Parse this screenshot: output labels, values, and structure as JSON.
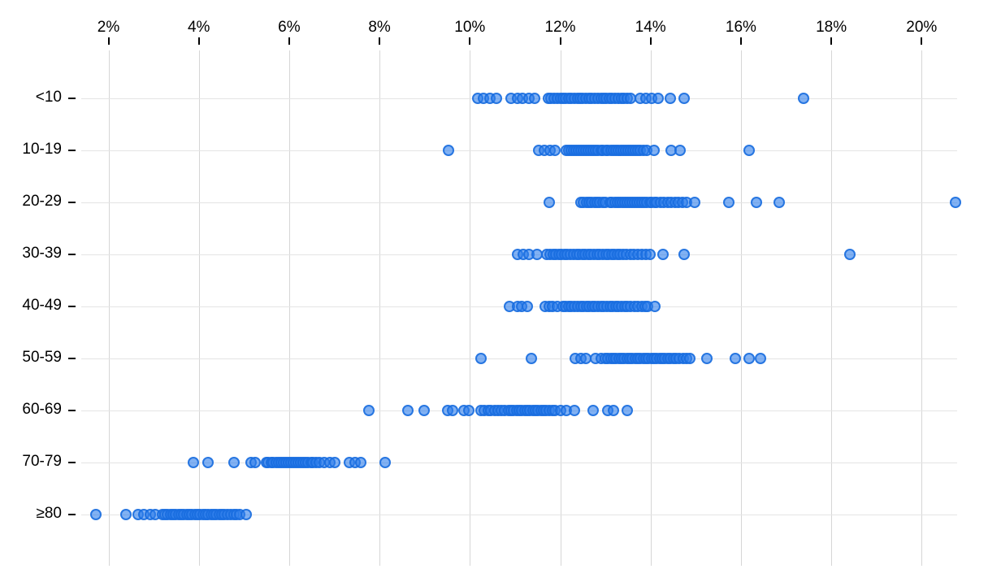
{
  "chart_data": {
    "type": "scatter",
    "variant": "strip-dot-plot",
    "title": "",
    "xlabel": "",
    "ylabel": "",
    "x_axis_position": "top",
    "x_tick_values": [
      2,
      4,
      6,
      8,
      10,
      12,
      14,
      16,
      18,
      20
    ],
    "x_tick_suffix": "%",
    "xlim": [
      1.4,
      20.9
    ],
    "grid": true,
    "legend": "none",
    "marker": {
      "shape": "circle",
      "fill": "rgba(45,125,235,0.6)",
      "stroke": "rgba(23,108,222,0.85)",
      "accent_hex": "#2d7df0"
    },
    "categories": [
      "<10",
      "10-19",
      "20-29",
      "30-39",
      "40-49",
      "50-59",
      "60-69",
      "70-79",
      "≥80"
    ],
    "series": [
      {
        "name": "<10",
        "values": [
          10.18,
          10.3,
          10.45,
          10.58,
          10.92,
          11.05,
          11.17,
          11.3,
          11.44,
          11.74,
          11.8,
          11.87,
          11.93,
          12.0,
          12.06,
          12.12,
          12.19,
          12.25,
          12.31,
          12.38,
          12.44,
          12.5,
          12.57,
          12.63,
          12.7,
          12.76,
          12.83,
          12.9,
          12.96,
          13.02,
          13.09,
          13.15,
          13.22,
          13.28,
          13.35,
          13.42,
          13.49,
          13.56,
          13.77,
          13.9,
          14.03,
          14.16,
          14.43,
          14.75,
          17.39
        ]
      },
      {
        "name": "10-19",
        "values": [
          9.53,
          11.53,
          11.65,
          11.77,
          11.88,
          12.13,
          12.18,
          12.24,
          12.29,
          12.35,
          12.4,
          12.46,
          12.51,
          12.57,
          12.62,
          12.68,
          12.73,
          12.79,
          12.84,
          12.9,
          12.95,
          13.01,
          13.06,
          13.12,
          13.17,
          13.23,
          13.28,
          13.34,
          13.39,
          13.45,
          13.5,
          13.56,
          13.61,
          13.67,
          13.72,
          13.78,
          13.85,
          13.92,
          14.07,
          14.46,
          14.66,
          16.19
        ]
      },
      {
        "name": "20-29",
        "values": [
          11.75,
          12.46,
          12.52,
          12.58,
          12.64,
          12.7,
          12.76,
          12.82,
          12.88,
          12.94,
          13.0,
          13.1,
          13.15,
          13.21,
          13.26,
          13.32,
          13.37,
          13.43,
          13.48,
          13.54,
          13.59,
          13.65,
          13.7,
          13.76,
          13.81,
          13.87,
          13.92,
          13.98,
          14.03,
          14.09,
          14.14,
          14.22,
          14.3,
          14.38,
          14.46,
          14.54,
          14.62,
          14.7,
          14.8,
          14.98,
          15.74,
          16.35,
          16.85,
          20.75
        ]
      },
      {
        "name": "30-39",
        "values": [
          11.06,
          11.18,
          11.3,
          11.48,
          11.71,
          11.77,
          11.84,
          11.9,
          11.97,
          12.03,
          12.1,
          12.16,
          12.23,
          12.29,
          12.36,
          12.42,
          12.49,
          12.55,
          12.62,
          12.68,
          12.75,
          12.81,
          12.88,
          12.94,
          13.01,
          13.07,
          13.14,
          13.2,
          13.27,
          13.33,
          13.4,
          13.46,
          13.55,
          13.62,
          13.72,
          13.8,
          13.9,
          13.98,
          14.27,
          14.75,
          18.41
        ]
      },
      {
        "name": "40-49",
        "values": [
          10.87,
          11.05,
          11.15,
          11.27,
          11.67,
          11.75,
          11.83,
          11.94,
          12.06,
          12.12,
          12.19,
          12.25,
          12.32,
          12.38,
          12.45,
          12.51,
          12.58,
          12.64,
          12.71,
          12.77,
          12.84,
          12.9,
          12.97,
          13.03,
          13.1,
          13.16,
          13.23,
          13.29,
          13.36,
          13.43,
          13.49,
          13.56,
          13.64,
          13.72,
          13.8,
          13.88,
          13.94,
          14.09
        ]
      },
      {
        "name": "50-59",
        "values": [
          10.24,
          11.36,
          12.33,
          12.45,
          12.57,
          12.78,
          12.9,
          13.0,
          13.06,
          13.12,
          13.18,
          13.24,
          13.3,
          13.36,
          13.42,
          13.48,
          13.54,
          13.6,
          13.66,
          13.72,
          13.78,
          13.84,
          13.9,
          13.96,
          14.02,
          14.08,
          14.14,
          14.2,
          14.26,
          14.32,
          14.38,
          14.44,
          14.5,
          14.57,
          14.64,
          14.72,
          14.8,
          14.87,
          15.25,
          15.87,
          16.18,
          16.43
        ]
      },
      {
        "name": "60-69",
        "values": [
          7.77,
          8.63,
          8.99,
          9.5,
          9.62,
          9.86,
          9.98,
          10.25,
          10.32,
          10.4,
          10.47,
          10.55,
          10.62,
          10.7,
          10.76,
          10.85,
          10.91,
          10.97,
          11.03,
          11.09,
          11.15,
          11.21,
          11.27,
          11.33,
          11.39,
          11.45,
          11.51,
          11.57,
          11.63,
          11.69,
          11.76,
          11.83,
          11.89,
          12.01,
          12.13,
          12.31,
          12.73,
          13.06,
          13.18,
          13.48
        ]
      },
      {
        "name": "70-79",
        "values": [
          3.88,
          4.21,
          4.78,
          5.15,
          5.25,
          5.49,
          5.54,
          5.6,
          5.65,
          5.71,
          5.76,
          5.82,
          5.87,
          5.93,
          5.98,
          6.04,
          6.09,
          6.15,
          6.2,
          6.26,
          6.31,
          6.37,
          6.42,
          6.48,
          6.53,
          6.6,
          6.66,
          6.78,
          6.9,
          7.01,
          7.33,
          7.46,
          7.58,
          8.12
        ]
      },
      {
        "name": "≥80",
        "values": [
          1.72,
          2.39,
          2.66,
          2.78,
          2.93,
          3.04,
          3.19,
          3.25,
          3.31,
          3.37,
          3.43,
          3.49,
          3.55,
          3.61,
          3.67,
          3.73,
          3.79,
          3.85,
          3.91,
          3.97,
          4.03,
          4.09,
          4.15,
          4.21,
          4.27,
          4.33,
          4.39,
          4.45,
          4.51,
          4.57,
          4.63,
          4.7,
          4.77,
          4.84,
          4.9,
          5.05
        ]
      }
    ]
  }
}
